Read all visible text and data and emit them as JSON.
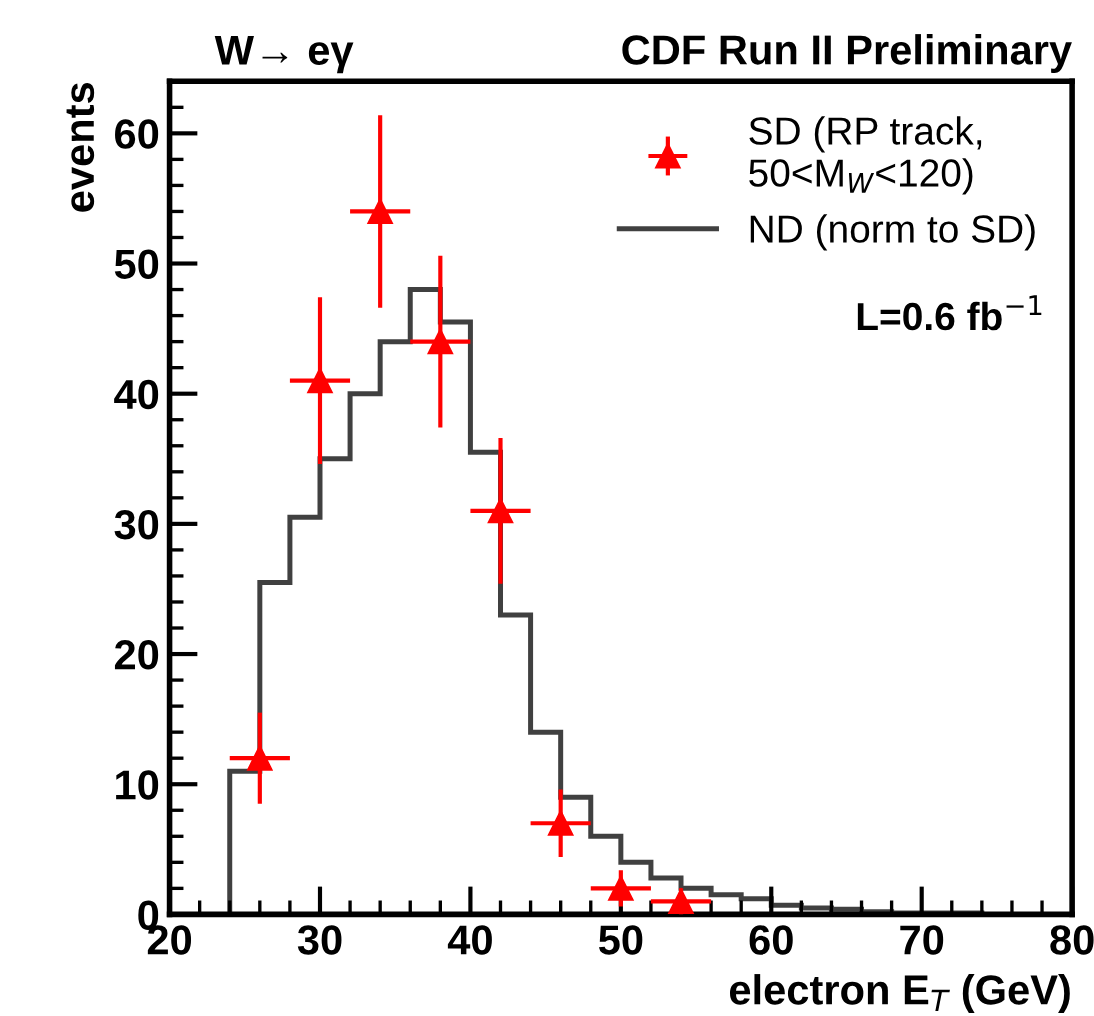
{
  "chart_data": {
    "type": "histogram",
    "title": "W→ eγ",
    "xlabel": "electron E$_{T}$ (GeV)",
    "ylabel": "events",
    "annotations": [
      "CDF Run II Preliminary",
      "L=0.6 fb$^{−1}$"
    ],
    "bins": [
      20,
      22,
      24,
      26,
      28,
      30,
      32,
      34,
      36,
      38,
      40,
      42,
      44,
      46,
      48,
      50,
      52,
      54,
      56,
      58,
      60,
      62,
      64,
      66,
      68,
      70,
      72,
      74,
      76,
      78,
      80
    ],
    "xlim": [
      20,
      80
    ],
    "xticks": [
      20,
      30,
      40,
      50,
      60,
      70,
      80
    ],
    "ylim": [
      0,
      64
    ],
    "yticks": [
      0,
      10,
      20,
      30,
      40,
      50,
      60
    ],
    "legend": "top right",
    "grid": false,
    "series": [
      {
        "name": "SD (RP track,\n50<M$_{W}$<120)",
        "type": "scatter",
        "color": "#ff0000",
        "marker": "triangle",
        "x": [
          26,
          30,
          34,
          38,
          42,
          46,
          50,
          54
        ],
        "values": [
          12,
          41,
          54,
          44,
          31,
          7,
          2,
          1
        ],
        "errors": [
          3.5,
          6.4,
          7.4,
          6.6,
          5.6,
          2.6,
          1.4,
          1
        ],
        "xerrors": [
          2,
          2,
          2,
          2,
          2,
          2,
          2,
          2
        ]
      },
      {
        "name": "ND (norm to SD)",
        "color": "#000000",
        "values": [
          0,
          0,
          11,
          25.5,
          30.5,
          35,
          40,
          44,
          48,
          45.5,
          35.5,
          23,
          14,
          9,
          6,
          4,
          2.8,
          2,
          1.5,
          1.2,
          0.7,
          0.5,
          0.4,
          0.2,
          0.1,
          0.1,
          0.1,
          0,
          0,
          0
        ]
      }
    ]
  }
}
